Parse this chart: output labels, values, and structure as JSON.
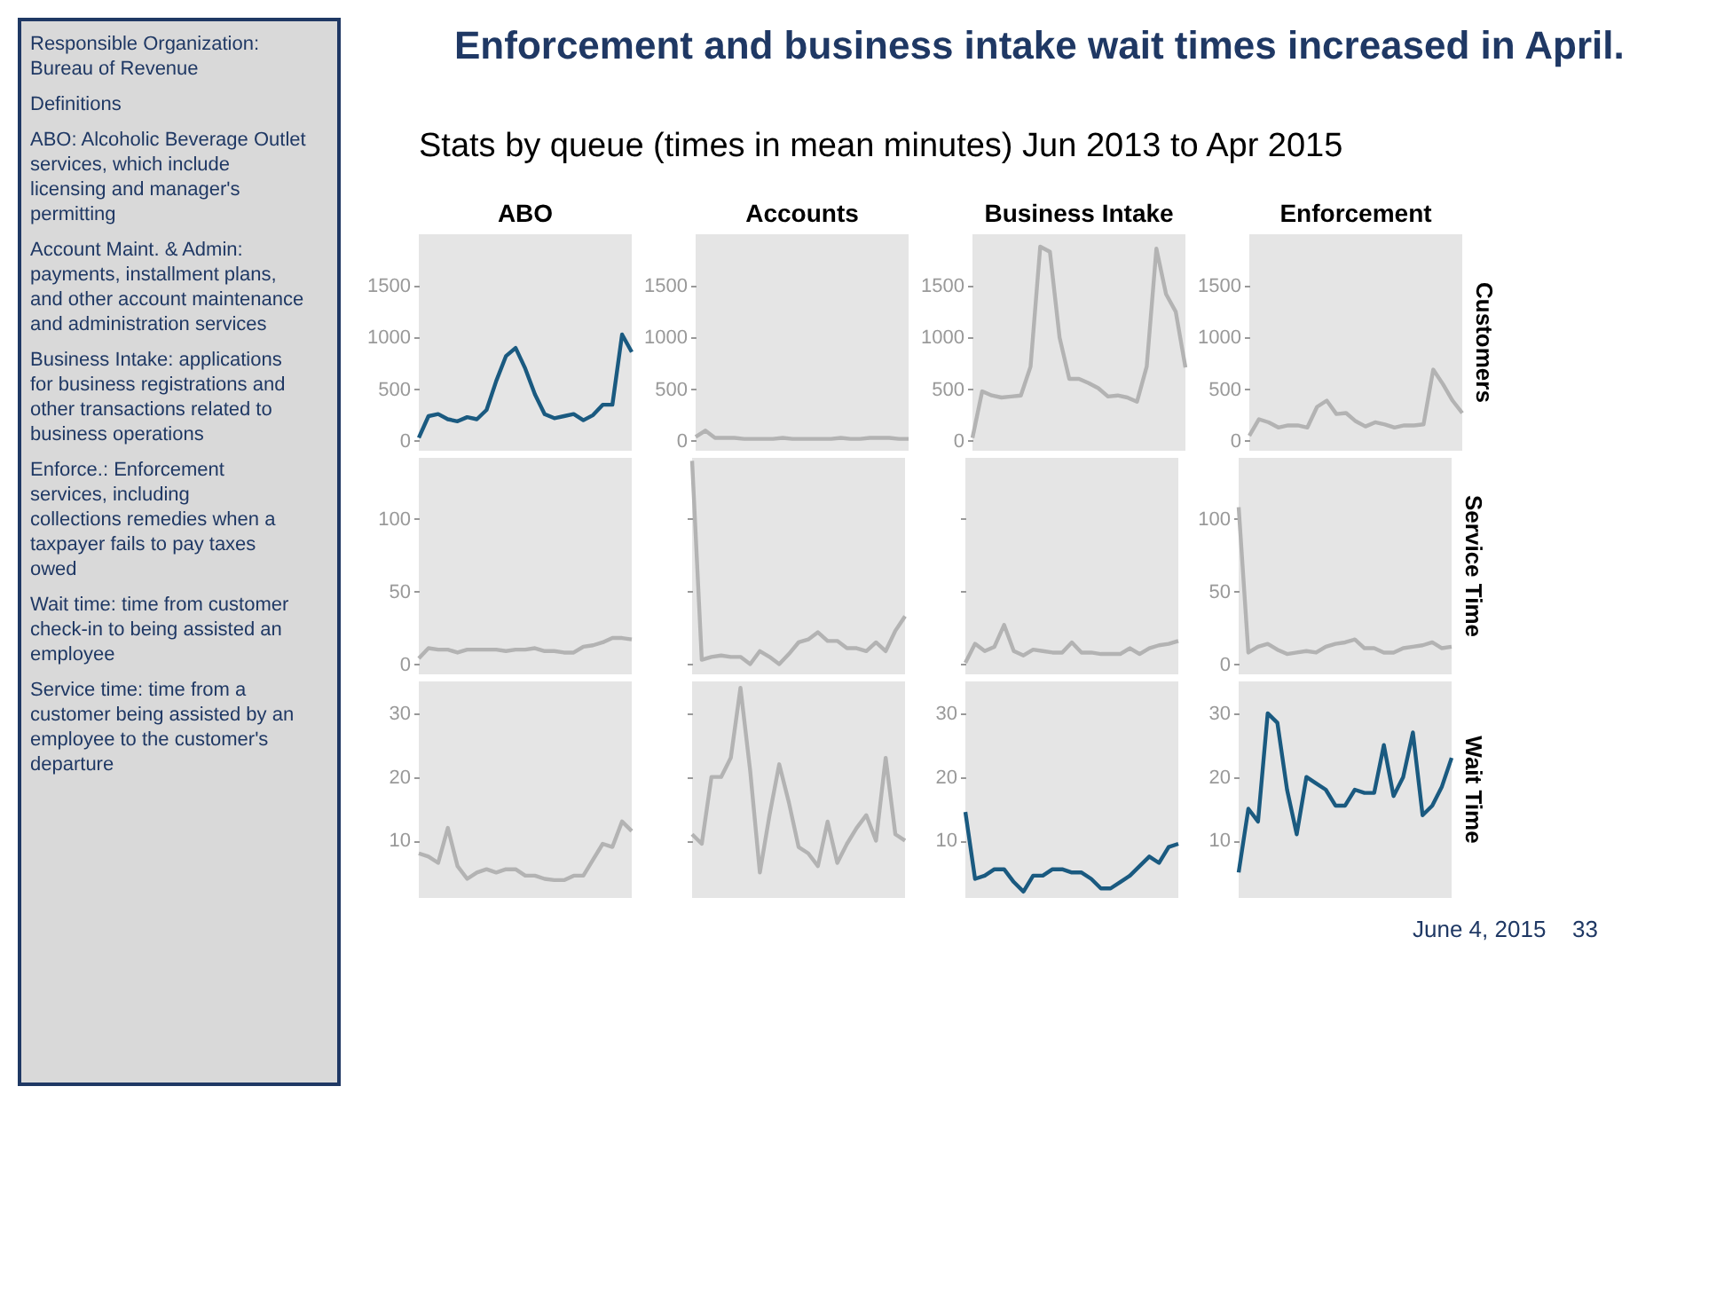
{
  "chart_data": [
    {
      "type": "other",
      "annotations": [
        "Responsible Organization: Bureau of Revenue",
        "Definitions",
        "ABO: Alcoholic Beverage Outlet services, which include licensing and manager's permitting",
        "Account Maint. & Admin: payments, installment plans, and other account maintenance and administration services",
        "Business Intake: applications for business registrations and other transactions related to business operations",
        "Enforce.: Enforcement services, including collections remedies when a taxpayer fails to pay taxes owed",
        "Wait time: time from customer check-in to being assisted an employee",
        "Service time: time from a customer being assisted by an employee to the customer's departure"
      ]
    },
    {
      "type": "other",
      "title": "Enforcement and business intake wait times increased in April.",
      "subtitle": "Stats by queue (times in mean minutes) Jun 2013 to Apr 2015"
    },
    {
      "type": "line",
      "title": "ABO",
      "color": "#1a5a80",
      "ylim": [
        -95,
        2000
      ],
      "yticks": [
        0,
        500,
        1000,
        1500
      ],
      "categories": [
        null,
        null,
        null,
        null,
        null,
        null,
        null,
        null,
        null,
        null,
        null,
        null,
        null,
        null,
        null,
        null,
        null,
        null,
        null,
        null,
        null,
        null,
        null
      ],
      "values": [
        30,
        240,
        260,
        210,
        190,
        230,
        210,
        300,
        580,
        820,
        900,
        700,
        450,
        260,
        220,
        240,
        260,
        200,
        250,
        350,
        350,
        1030,
        860
      ]
    },
    {
      "type": "line",
      "title": "Accounts",
      "color": "#b3b3b3",
      "ylim": [
        -95,
        2000
      ],
      "yticks": [
        0,
        500,
        1000,
        1500
      ],
      "categories": [
        null,
        null,
        null,
        null,
        null,
        null,
        null,
        null,
        null,
        null,
        null,
        null,
        null,
        null,
        null,
        null,
        null,
        null,
        null,
        null,
        null,
        null,
        null
      ],
      "values": [
        40,
        100,
        30,
        30,
        30,
        20,
        20,
        20,
        20,
        30,
        20,
        20,
        20,
        20,
        20,
        30,
        20,
        20,
        30,
        30,
        30,
        20,
        20
      ]
    },
    {
      "type": "line",
      "title": "Business Intake",
      "color": "#b3b3b3",
      "ylim": [
        -95,
        2000
      ],
      "yticks": [
        0,
        500,
        1000,
        1500
      ],
      "categories": [
        null,
        null,
        null,
        null,
        null,
        null,
        null,
        null,
        null,
        null,
        null,
        null,
        null,
        null,
        null,
        null,
        null,
        null,
        null,
        null,
        null,
        null,
        null
      ],
      "values": [
        30,
        480,
        440,
        420,
        430,
        440,
        720,
        1880,
        1830,
        1000,
        600,
        600,
        560,
        510,
        430,
        440,
        420,
        380,
        720,
        1860,
        1420,
        1250,
        710
      ]
    },
    {
      "type": "line",
      "title": "Enforcement",
      "ylabel": "Customers",
      "color": "#b3b3b3",
      "ylim": [
        -95,
        2000
      ],
      "yticks": [
        0,
        500,
        1000,
        1500
      ],
      "categories": [
        null,
        null,
        null,
        null,
        null,
        null,
        null,
        null,
        null,
        null,
        null,
        null,
        null,
        null,
        null,
        null,
        null,
        null,
        null,
        null,
        null,
        null,
        null
      ],
      "values": [
        50,
        210,
        180,
        130,
        150,
        150,
        130,
        330,
        390,
        260,
        270,
        190,
        140,
        180,
        160,
        130,
        150,
        150,
        160,
        690,
        550,
        390,
        270
      ]
    },
    {
      "type": "line",
      "color": "#b3b3b3",
      "ylim": [
        -7,
        142
      ],
      "yticks": [
        0,
        50,
        100
      ],
      "categories": [
        null,
        null,
        null,
        null,
        null,
        null,
        null,
        null,
        null,
        null,
        null,
        null,
        null,
        null,
        null,
        null,
        null,
        null,
        null,
        null,
        null,
        null,
        null
      ],
      "values": [
        4,
        11,
        10,
        10,
        8,
        10,
        10,
        10,
        10,
        9,
        10,
        10,
        11,
        9,
        9,
        8,
        8,
        12,
        13,
        15,
        18,
        18,
        17
      ]
    },
    {
      "type": "line",
      "color": "#b3b3b3",
      "ylim": [
        -7,
        142
      ],
      "yticks": [
        0,
        50,
        100
      ],
      "tick_labels": false,
      "categories": [
        null,
        null,
        null,
        null,
        null,
        null,
        null,
        null,
        null,
        null,
        null,
        null,
        null,
        null,
        null,
        null,
        null,
        null,
        null,
        null,
        null,
        null,
        null
      ],
      "values": [
        140,
        3,
        5,
        6,
        5,
        5,
        0,
        9,
        5,
        0,
        7,
        15,
        17,
        22,
        16,
        16,
        11,
        11,
        9,
        15,
        9,
        23,
        33
      ]
    },
    {
      "type": "line",
      "color": "#b3b3b3",
      "ylim": [
        -7,
        142
      ],
      "yticks": [
        0,
        50,
        100
      ],
      "tick_labels": false,
      "categories": [
        null,
        null,
        null,
        null,
        null,
        null,
        null,
        null,
        null,
        null,
        null,
        null,
        null,
        null,
        null,
        null,
        null,
        null,
        null,
        null,
        null,
        null,
        null
      ],
      "values": [
        1,
        14,
        9,
        12,
        27,
        9,
        6,
        10,
        9,
        8,
        8,
        15,
        8,
        8,
        7,
        7,
        7,
        11,
        7,
        11,
        13,
        14,
        16
      ]
    },
    {
      "type": "line",
      "ylabel": "Service Time",
      "color": "#b3b3b3",
      "ylim": [
        -7,
        142
      ],
      "yticks": [
        0,
        50,
        100
      ],
      "categories": [
        null,
        null,
        null,
        null,
        null,
        null,
        null,
        null,
        null,
        null,
        null,
        null,
        null,
        null,
        null,
        null,
        null,
        null,
        null,
        null,
        null,
        null,
        null
      ],
      "values": [
        108,
        8,
        12,
        14,
        10,
        7,
        8,
        9,
        8,
        12,
        14,
        15,
        17,
        11,
        11,
        8,
        8,
        11,
        12,
        13,
        15,
        11,
        12
      ]
    },
    {
      "type": "line",
      "color": "#b3b3b3",
      "ylim": [
        1,
        35
      ],
      "yticks": [
        10,
        20,
        30
      ],
      "categories": [
        null,
        null,
        null,
        null,
        null,
        null,
        null,
        null,
        null,
        null,
        null,
        null,
        null,
        null,
        null,
        null,
        null,
        null,
        null,
        null,
        null,
        null,
        null
      ],
      "values": [
        8,
        7.5,
        6.5,
        12,
        6,
        4,
        5,
        5.5,
        5,
        5.5,
        5.5,
        4.5,
        4.5,
        4,
        3.8,
        3.8,
        4.5,
        4.5,
        7,
        9.5,
        9,
        13,
        11.5
      ]
    },
    {
      "type": "line",
      "color": "#b3b3b3",
      "ylim": [
        1,
        35
      ],
      "yticks": [
        10,
        20,
        30
      ],
      "tick_labels": false,
      "categories": [
        null,
        null,
        null,
        null,
        null,
        null,
        null,
        null,
        null,
        null,
        null,
        null,
        null,
        null,
        null,
        null,
        null,
        null,
        null,
        null,
        null,
        null,
        null
      ],
      "values": [
        11,
        9.5,
        20,
        20,
        23,
        34,
        21,
        5,
        14,
        22,
        16,
        9,
        8,
        6,
        13,
        6.5,
        9.5,
        12,
        14,
        10,
        23,
        11,
        10
      ]
    },
    {
      "type": "line",
      "color": "#1a5a80",
      "ylim": [
        1,
        35
      ],
      "yticks": [
        10,
        20,
        30
      ],
      "categories": [
        null,
        null,
        null,
        null,
        null,
        null,
        null,
        null,
        null,
        null,
        null,
        null,
        null,
        null,
        null,
        null,
        null,
        null,
        null,
        null,
        null,
        null,
        null
      ],
      "values": [
        14.5,
        4,
        4.5,
        5.5,
        5.5,
        3.5,
        2,
        4.5,
        4.5,
        5.5,
        5.5,
        5,
        5,
        4,
        2.5,
        2.5,
        3.5,
        4.5,
        6,
        7.5,
        6.5,
        9,
        9.5
      ]
    },
    {
      "type": "line",
      "ylabel": "Wait Time",
      "color": "#1a5a80",
      "ylim": [
        1,
        35
      ],
      "yticks": [
        10,
        20,
        30
      ],
      "categories": [
        null,
        null,
        null,
        null,
        null,
        null,
        null,
        null,
        null,
        null,
        null,
        null,
        null,
        null,
        null,
        null,
        null,
        null,
        null,
        null,
        null,
        null,
        null
      ],
      "values": [
        5,
        15,
        13,
        30,
        28.5,
        18,
        11,
        20,
        19,
        18,
        15.5,
        15.5,
        18,
        17.5,
        17.5,
        25,
        17,
        20,
        27,
        14,
        15.5,
        18.5,
        23
      ]
    },
    {
      "type": "other",
      "annotations": [
        "June 4, 2015",
        "33"
      ]
    }
  ]
}
